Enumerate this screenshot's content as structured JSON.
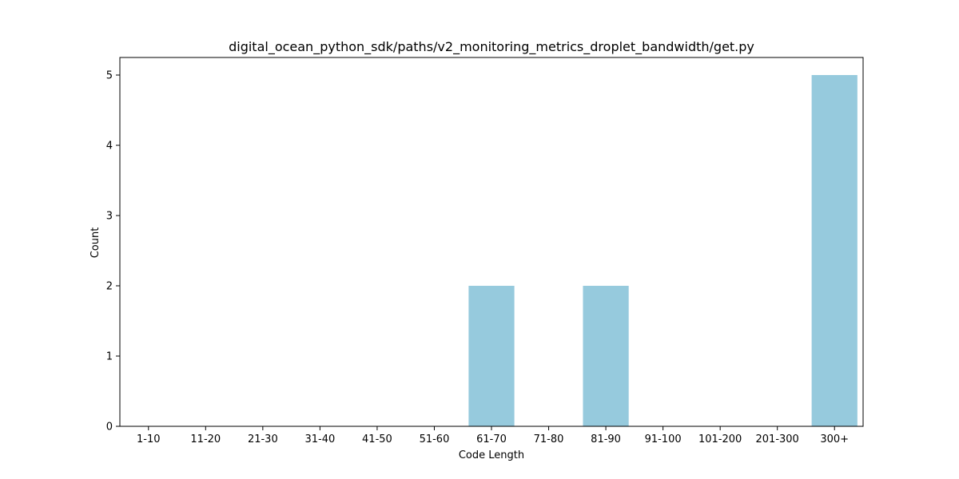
{
  "chart_data": {
    "type": "bar",
    "title": "digital_ocean_python_sdk/paths/v2_monitoring_metrics_droplet_bandwidth/get.py",
    "xlabel": "Code Length",
    "ylabel": "Count",
    "categories": [
      "1-10",
      "11-20",
      "21-30",
      "31-40",
      "41-50",
      "51-60",
      "61-70",
      "71-80",
      "81-90",
      "91-100",
      "101-200",
      "201-300",
      "300+"
    ],
    "values": [
      0,
      0,
      0,
      0,
      0,
      0,
      2,
      0,
      2,
      0,
      0,
      0,
      5
    ],
    "ylim": [
      0,
      5.25
    ],
    "yticks": [
      0,
      1,
      2,
      3,
      4,
      5
    ],
    "bar_color": "#96cadd",
    "grid": false,
    "legend": "none"
  }
}
